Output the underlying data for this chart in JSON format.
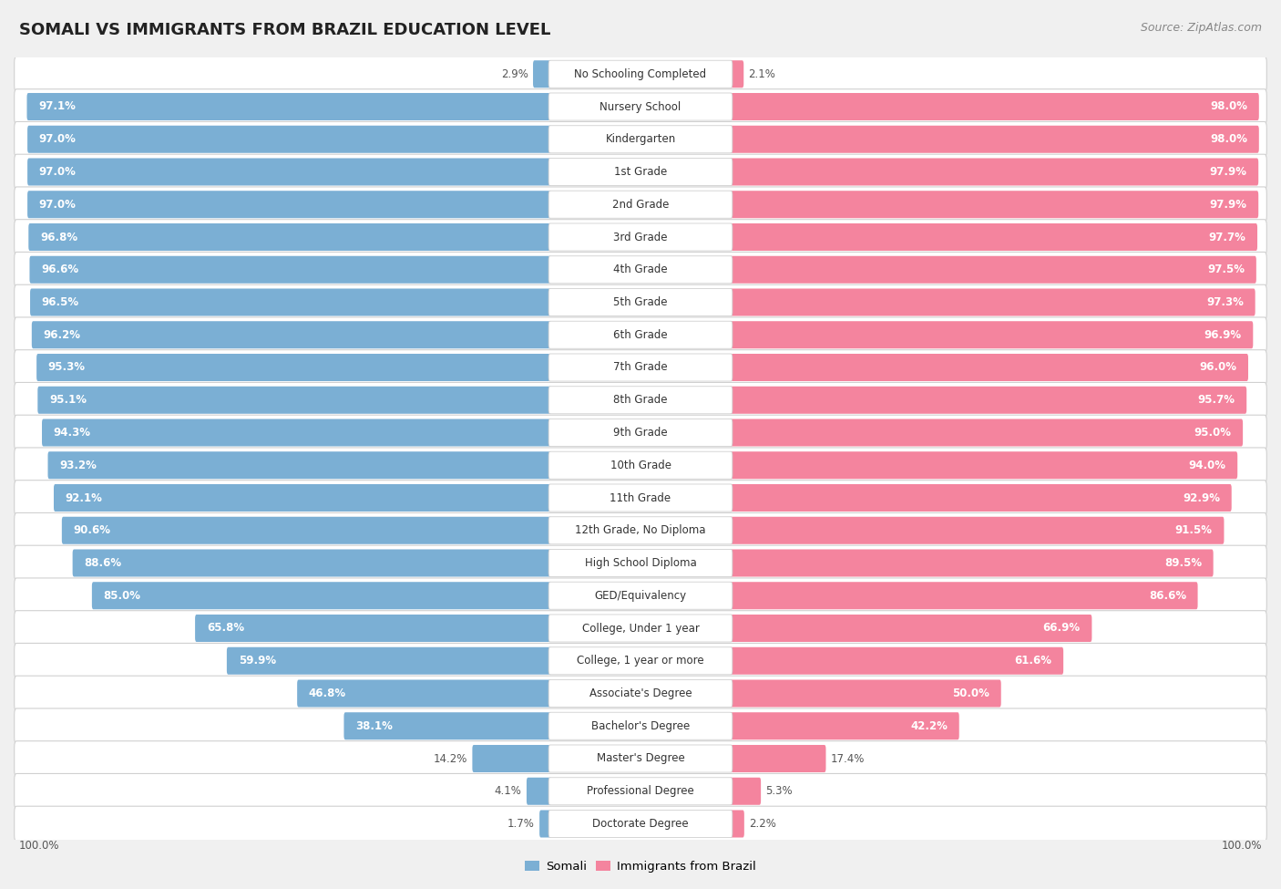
{
  "title": "SOMALI VS IMMIGRANTS FROM BRAZIL EDUCATION LEVEL",
  "source": "Source: ZipAtlas.com",
  "categories": [
    "No Schooling Completed",
    "Nursery School",
    "Kindergarten",
    "1st Grade",
    "2nd Grade",
    "3rd Grade",
    "4th Grade",
    "5th Grade",
    "6th Grade",
    "7th Grade",
    "8th Grade",
    "9th Grade",
    "10th Grade",
    "11th Grade",
    "12th Grade, No Diploma",
    "High School Diploma",
    "GED/Equivalency",
    "College, Under 1 year",
    "College, 1 year or more",
    "Associate's Degree",
    "Bachelor's Degree",
    "Master's Degree",
    "Professional Degree",
    "Doctorate Degree"
  ],
  "somali": [
    2.9,
    97.1,
    97.0,
    97.0,
    97.0,
    96.8,
    96.6,
    96.5,
    96.2,
    95.3,
    95.1,
    94.3,
    93.2,
    92.1,
    90.6,
    88.6,
    85.0,
    65.8,
    59.9,
    46.8,
    38.1,
    14.2,
    4.1,
    1.7
  ],
  "brazil": [
    2.1,
    98.0,
    98.0,
    97.9,
    97.9,
    97.7,
    97.5,
    97.3,
    96.9,
    96.0,
    95.7,
    95.0,
    94.0,
    92.9,
    91.5,
    89.5,
    86.6,
    66.9,
    61.6,
    50.0,
    42.2,
    17.4,
    5.3,
    2.2
  ],
  "somali_color": "#7bafd4",
  "brazil_color": "#f4849e",
  "background_color": "#f0f0f0",
  "row_bg_color": "#ffffff",
  "row_border_color": "#d0d0d0",
  "label_box_color": "#ffffff",
  "title_fontsize": 13,
  "source_fontsize": 9,
  "bar_label_fontsize": 8.5,
  "cat_label_fontsize": 8.5
}
